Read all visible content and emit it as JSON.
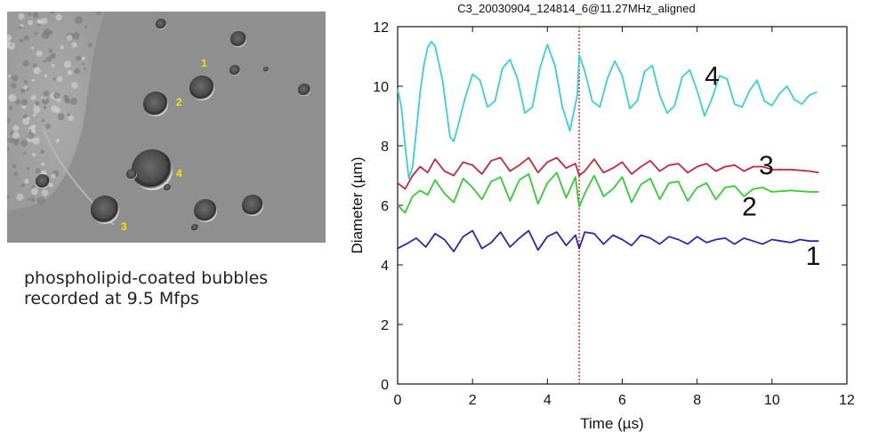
{
  "photo": {
    "bubble_labels": [
      "1",
      "2",
      "3",
      "4"
    ],
    "label_color": "#f2e600"
  },
  "caption": {
    "line1": "phospholipid-coated bubbles",
    "line2": "recorded at 9.5 Mfps"
  },
  "chart_data": {
    "type": "line",
    "title": "C3_20030904_124814_6@11.27MHz_aligned",
    "xlabel": "Time (µs)",
    "ylabel": "Diameter (µm)",
    "xlim": [
      0,
      12
    ],
    "ylim": [
      0,
      12
    ],
    "x_ticks": [
      "0",
      "2",
      "4",
      "6",
      "8",
      "10",
      "12"
    ],
    "y_ticks": [
      "0",
      "2",
      "4",
      "6",
      "8",
      "10",
      "12"
    ],
    "marker_line_x": 4.85,
    "marker_line_color": "#e0201c",
    "series": [
      {
        "label": "1",
        "color": "#2a2aa8",
        "x": [
          0.0,
          0.3,
          0.5,
          0.75,
          1.0,
          1.25,
          1.5,
          1.75,
          2.0,
          2.25,
          2.5,
          2.75,
          3.0,
          3.25,
          3.5,
          3.75,
          4.0,
          4.25,
          4.5,
          4.75,
          4.85,
          5.0,
          5.25,
          5.5,
          5.75,
          6.0,
          6.25,
          6.5,
          6.75,
          7.0,
          7.25,
          7.5,
          7.75,
          8.0,
          8.25,
          8.5,
          8.75,
          9.0,
          9.25,
          9.5,
          9.75,
          10.0,
          10.25,
          10.5,
          10.75,
          11.0,
          11.25
        ],
        "y": [
          4.55,
          4.75,
          4.9,
          4.6,
          5.05,
          4.85,
          4.45,
          4.95,
          5.15,
          4.55,
          4.75,
          5.1,
          4.6,
          4.9,
          5.15,
          4.5,
          4.95,
          5.1,
          4.65,
          5.0,
          4.55,
          5.1,
          5.05,
          4.7,
          5.0,
          4.85,
          4.65,
          5.0,
          4.9,
          4.7,
          4.95,
          4.85,
          4.7,
          4.95,
          4.75,
          4.85,
          4.9,
          4.7,
          4.9,
          4.8,
          4.7,
          4.85,
          4.8,
          4.75,
          4.85,
          4.8,
          4.8
        ]
      },
      {
        "label": "2",
        "color": "#33cc33",
        "x": [
          0.0,
          0.2,
          0.4,
          0.6,
          0.8,
          1.0,
          1.25,
          1.5,
          1.75,
          2.0,
          2.25,
          2.5,
          2.75,
          3.0,
          3.25,
          3.5,
          3.75,
          4.0,
          4.25,
          4.5,
          4.75,
          4.85,
          5.0,
          5.25,
          5.5,
          5.75,
          6.0,
          6.25,
          6.5,
          6.75,
          7.0,
          7.25,
          7.5,
          7.75,
          8.0,
          8.25,
          8.5,
          8.75,
          9.0,
          9.25,
          9.5,
          9.75,
          10.0,
          10.5,
          11.0,
          11.25
        ],
        "y": [
          6.0,
          5.75,
          6.3,
          6.5,
          6.35,
          6.85,
          6.4,
          6.1,
          6.9,
          6.6,
          6.2,
          6.8,
          6.95,
          6.15,
          6.85,
          7.05,
          6.05,
          6.75,
          7.1,
          6.25,
          6.95,
          5.95,
          6.4,
          7.0,
          6.3,
          6.55,
          6.95,
          6.1,
          6.7,
          6.9,
          6.2,
          6.75,
          6.8,
          6.15,
          6.6,
          6.75,
          6.2,
          6.6,
          6.65,
          6.3,
          6.55,
          6.6,
          6.45,
          6.5,
          6.45,
          6.45
        ]
      },
      {
        "label": "3",
        "color": "#c4283c",
        "x": [
          0.0,
          0.2,
          0.4,
          0.6,
          0.8,
          1.0,
          1.25,
          1.5,
          1.75,
          2.0,
          2.25,
          2.5,
          2.75,
          3.0,
          3.25,
          3.5,
          3.75,
          4.0,
          4.25,
          4.5,
          4.75,
          4.85,
          5.0,
          5.25,
          5.5,
          5.75,
          6.0,
          6.25,
          6.5,
          6.75,
          7.0,
          7.25,
          7.5,
          7.75,
          8.0,
          8.25,
          8.5,
          8.75,
          9.0,
          9.25,
          9.5,
          9.75,
          10.0,
          10.5,
          11.0,
          11.25
        ],
        "y": [
          6.75,
          6.55,
          7.0,
          7.3,
          7.1,
          7.55,
          7.15,
          7.0,
          7.45,
          7.35,
          7.05,
          7.5,
          7.6,
          7.15,
          7.35,
          7.6,
          7.1,
          7.45,
          7.6,
          7.25,
          7.4,
          7.0,
          7.15,
          7.55,
          7.1,
          7.25,
          7.45,
          7.05,
          7.3,
          7.5,
          7.15,
          7.35,
          7.4,
          7.1,
          7.3,
          7.4,
          7.15,
          7.3,
          7.35,
          7.15,
          7.3,
          7.3,
          7.2,
          7.2,
          7.15,
          7.1
        ]
      },
      {
        "label": "4",
        "color": "#38d0d8",
        "x": [
          0.0,
          0.1,
          0.2,
          0.3,
          0.4,
          0.5,
          0.6,
          0.7,
          0.8,
          0.9,
          1.0,
          1.2,
          1.4,
          1.5,
          1.6,
          1.8,
          2.0,
          2.2,
          2.4,
          2.6,
          2.8,
          3.0,
          3.2,
          3.4,
          3.6,
          3.8,
          4.0,
          4.2,
          4.4,
          4.6,
          4.8,
          4.85,
          5.0,
          5.2,
          5.4,
          5.6,
          5.8,
          6.0,
          6.2,
          6.4,
          6.6,
          6.8,
          7.0,
          7.2,
          7.4,
          7.6,
          7.8,
          8.0,
          8.2,
          8.4,
          8.6,
          8.8,
          9.0,
          9.2,
          9.4,
          9.6,
          9.8,
          10.0,
          10.2,
          10.4,
          10.6,
          10.8,
          11.0,
          11.2
        ],
        "y": [
          9.9,
          9.3,
          8.0,
          6.9,
          7.3,
          8.5,
          9.8,
          10.7,
          11.3,
          11.5,
          11.35,
          10.2,
          8.3,
          8.15,
          8.6,
          9.6,
          10.4,
          10.2,
          9.3,
          9.5,
          10.6,
          10.9,
          10.25,
          9.1,
          9.3,
          10.6,
          11.4,
          10.7,
          9.3,
          8.5,
          9.7,
          11.05,
          10.5,
          9.5,
          9.3,
          10.25,
          10.85,
          10.35,
          9.25,
          9.5,
          10.5,
          10.7,
          9.7,
          9.1,
          9.35,
          10.3,
          10.55,
          9.85,
          9.0,
          9.6,
          10.35,
          10.25,
          9.4,
          9.3,
          9.85,
          10.2,
          9.5,
          9.35,
          9.75,
          10.0,
          9.55,
          9.4,
          9.7,
          9.8
        ]
      }
    ],
    "series_labels": [
      {
        "text": "1",
        "x": 10.9,
        "y": 4.3
      },
      {
        "text": "2",
        "x": 9.2,
        "y": 5.95
      },
      {
        "text": "3",
        "x": 9.65,
        "y": 7.35
      },
      {
        "text": "4",
        "x": 8.2,
        "y": 10.35
      }
    ]
  }
}
